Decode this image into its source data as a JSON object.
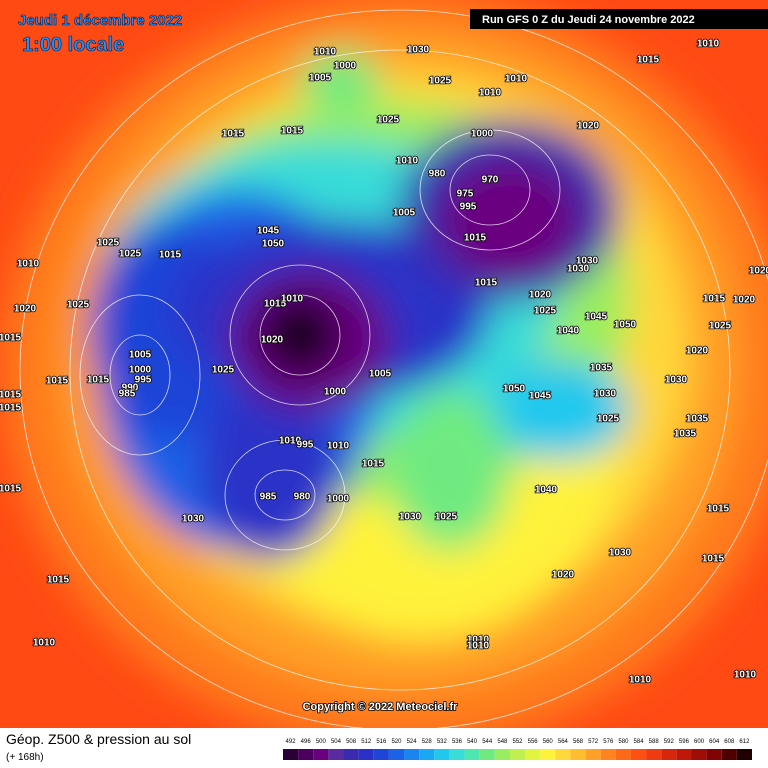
{
  "header": {
    "date": "Jeudi 1 décembre 2022",
    "time": "1:00 locale",
    "run": "Run GFS 0 Z du Jeudi 24 novembre 2022"
  },
  "map": {
    "copyright": "Copyright © 2022 Meteociel.fr",
    "isobar_labels": [
      "1010",
      "1000",
      "1005",
      "1030",
      "1010",
      "1015",
      "1025",
      "1010",
      "1010",
      "1025",
      "1015",
      "1015",
      "1000",
      "1020",
      "1010",
      "980",
      "975",
      "970",
      "995",
      "1005",
      "1015",
      "1045",
      "1050",
      "1025",
      "1025",
      "1010",
      "1015",
      "1030",
      "1030",
      "1015",
      "1020",
      "1025",
      "1040",
      "1045",
      "1050",
      "1025",
      "1020",
      "1015",
      "1020",
      "1020",
      "1025",
      "1015",
      "1010",
      "1015",
      "1020",
      "1005",
      "1000",
      "995",
      "990",
      "985",
      "1015",
      "1015",
      "1025",
      "1005",
      "1000",
      "1020",
      "1035",
      "1050",
      "1045",
      "1030",
      "1030",
      "1025",
      "1035",
      "1035",
      "1015",
      "1015",
      "1010",
      "995",
      "1010",
      "1015",
      "985",
      "980",
      "1000",
      "1040",
      "1015",
      "1030",
      "1030",
      "1025",
      "1015",
      "1030",
      "1020",
      "1015",
      "1015",
      "1010",
      "1010",
      "1010",
      "1010",
      "1010"
    ]
  },
  "footer": {
    "product": "Géop. Z500 & pression au sol",
    "lead": "(+ 168h)",
    "scale": {
      "values": [
        492,
        496,
        500,
        504,
        508,
        512,
        516,
        520,
        524,
        528,
        532,
        536,
        540,
        544,
        548,
        552,
        556,
        560,
        564,
        568,
        572,
        576,
        580,
        584,
        588,
        592,
        596,
        600,
        604,
        608,
        612
      ],
      "colors": [
        "#2a0036",
        "#4b0060",
        "#6a0080",
        "#5a2aa0",
        "#3a2ab0",
        "#2a30c8",
        "#1e44d8",
        "#1c62e6",
        "#1a84f0",
        "#18a8f4",
        "#20c8ee",
        "#38dcd8",
        "#50e6b0",
        "#70ea80",
        "#98ee60",
        "#c0f050",
        "#e0f440",
        "#fff23a",
        "#ffd83a",
        "#ffbe30",
        "#ffa028",
        "#ff8420",
        "#ff6a18",
        "#ff5014",
        "#f03a10",
        "#d8260c",
        "#c01808",
        "#a00c06",
        "#800404",
        "#500000",
        "#200000"
      ]
    }
  }
}
